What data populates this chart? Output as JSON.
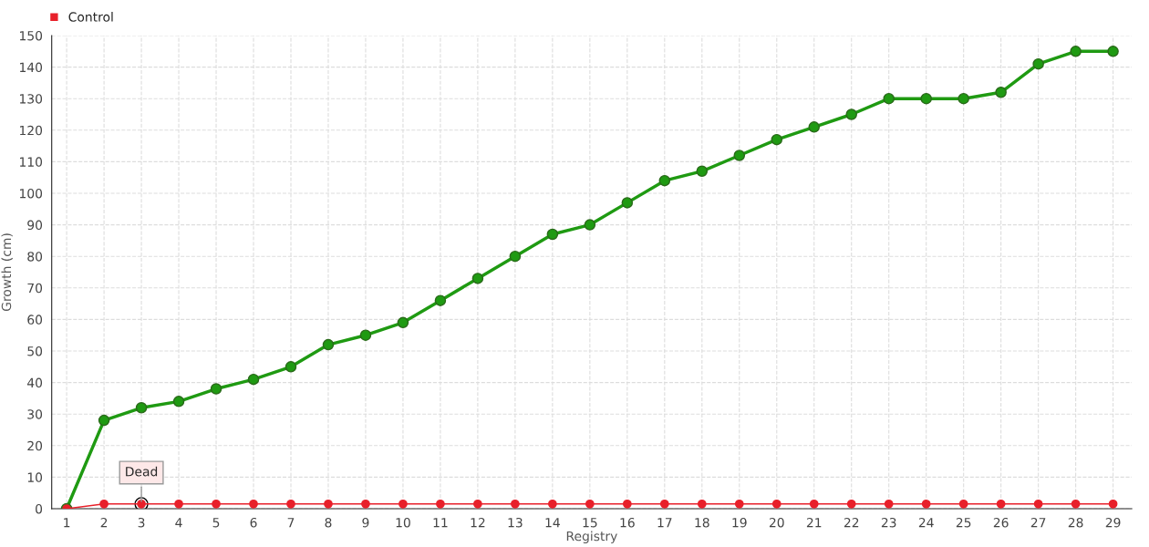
{
  "chart_data": {
    "type": "line",
    "xlabel": "Registry",
    "ylabel": "Growth (cm)",
    "categories": [
      "1",
      "2",
      "3",
      "4",
      "5",
      "6",
      "7",
      "8",
      "9",
      "10",
      "11",
      "12",
      "13",
      "14",
      "15",
      "16",
      "17",
      "18",
      "19",
      "20",
      "21",
      "22",
      "23",
      "24",
      "25",
      "26",
      "27",
      "28",
      "29"
    ],
    "series": [
      {
        "color": "#1f9a12",
        "values": [
          0,
          28,
          32,
          34,
          38,
          41,
          45,
          52,
          55,
          59,
          66,
          73,
          80,
          87,
          90,
          97,
          104,
          107,
          112,
          117,
          121,
          125,
          130,
          130,
          130,
          132,
          141,
          145,
          145
        ]
      },
      {
        "name": "Control",
        "color": "#e8202a",
        "values": [
          0,
          1.5,
          1.5,
          1.5,
          1.5,
          1.5,
          1.5,
          1.5,
          1.5,
          1.5,
          1.5,
          1.5,
          1.5,
          1.5,
          1.5,
          1.5,
          1.5,
          1.5,
          1.5,
          1.5,
          1.5,
          1.5,
          1.5,
          1.5,
          1.5,
          1.5,
          1.5,
          1.5,
          1.5
        ]
      }
    ],
    "ylim": [
      0,
      150
    ],
    "yticks": [
      0,
      10,
      20,
      30,
      40,
      50,
      60,
      70,
      80,
      90,
      100,
      110,
      120,
      130,
      140,
      150
    ],
    "annotations": [
      {
        "text": "Dead",
        "x": "3",
        "y": 1.5
      }
    ],
    "grid": true,
    "legend": "top left",
    "marker": "circle",
    "line_style": "solid"
  }
}
